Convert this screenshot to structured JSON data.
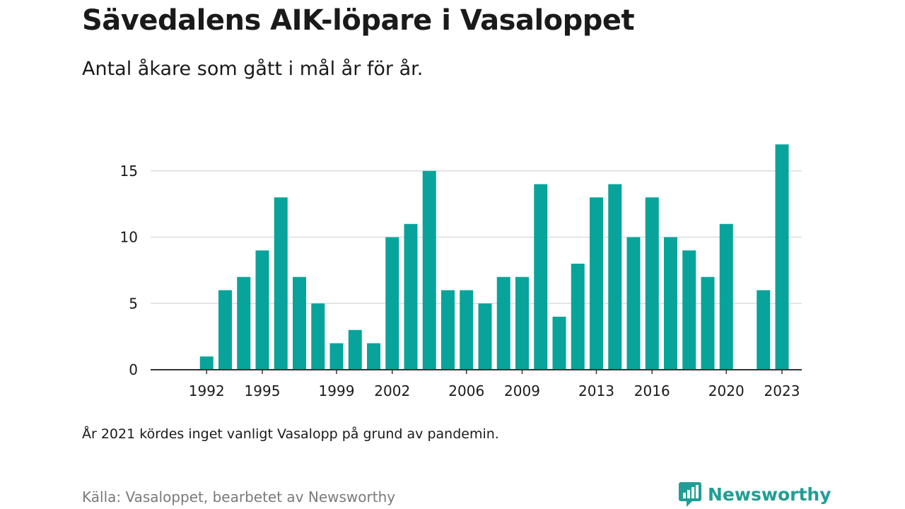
{
  "header": {
    "title": "Sävedalens AIK-löpare i Vasaloppet",
    "subtitle": "Antal åkare som gått i mål år för år."
  },
  "footer": {
    "note": "År 2021 kördes inget vanligt Vasalopp på grund av pandemin.",
    "source": "Källa: Vasaloppet, bearbetet av Newsworthy",
    "brand_name": "Newsworthy"
  },
  "colors": {
    "bar": "#08a49b",
    "grid": "#dcdcdc",
    "axis": "#333333",
    "brand": "#1f9e95"
  },
  "icons": {
    "brand_logo": "newsworthy-bar-chart-icon"
  },
  "chart_data": {
    "type": "bar",
    "title": "Sävedalens AIK-löpare i Vasaloppet",
    "subtitle": "Antal åkare som gått i mål år för år.",
    "xlabel": "",
    "ylabel": "",
    "ylim": [
      0,
      18
    ],
    "yticks": [
      0,
      5,
      10,
      15
    ],
    "xtick_labels": [
      1992,
      1995,
      1999,
      2002,
      2006,
      2009,
      2013,
      2016,
      2020,
      2023
    ],
    "grid": true,
    "legend": "none",
    "categories": [
      1991,
      1992,
      1993,
      1994,
      1995,
      1996,
      1997,
      1998,
      1999,
      2000,
      2001,
      2002,
      2003,
      2004,
      2005,
      2006,
      2007,
      2008,
      2009,
      2010,
      2011,
      2012,
      2013,
      2014,
      2015,
      2016,
      2017,
      2018,
      2019,
      2020,
      2021,
      2022,
      2023
    ],
    "values": [
      null,
      1,
      6,
      7,
      9,
      13,
      7,
      5,
      2,
      3,
      2,
      10,
      11,
      15,
      6,
      6,
      5,
      7,
      7,
      14,
      4,
      8,
      13,
      14,
      10,
      13,
      10,
      9,
      7,
      11,
      null,
      6,
      17
    ]
  }
}
